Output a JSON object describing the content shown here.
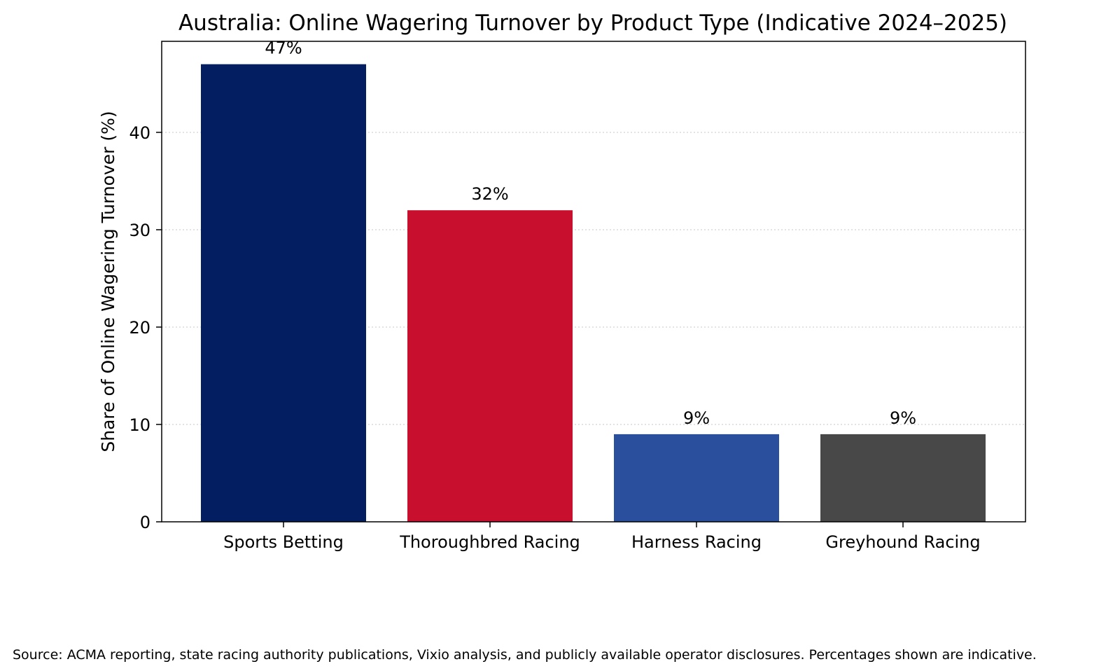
{
  "chart_data": {
    "type": "bar",
    "title": "Australia: Online Wagering Turnover by Product Type (Indicative 2024–2025)",
    "xlabel": "",
    "ylabel": "Share of Online Wagering Turnover (%)",
    "categories": [
      "Sports Betting",
      "Thoroughbred Racing",
      "Harness Racing",
      "Greyhound Racing"
    ],
    "values": [
      47,
      32,
      9,
      9
    ],
    "data_labels": [
      "47%",
      "32%",
      "9%",
      "9%"
    ],
    "colors": [
      "#041E62",
      "#C8102E",
      "#2A4F9D",
      "#484848"
    ],
    "ylim": [
      0,
      49.35
    ],
    "yticks": [
      0,
      10,
      20,
      30,
      40
    ],
    "grid": "y-dotted",
    "legend": "none"
  },
  "footer": {
    "source": "Source: ACMA reporting, state racing authority publications, Vixio analysis, and publicly available operator disclosures. Percentages shown are indicative."
  }
}
